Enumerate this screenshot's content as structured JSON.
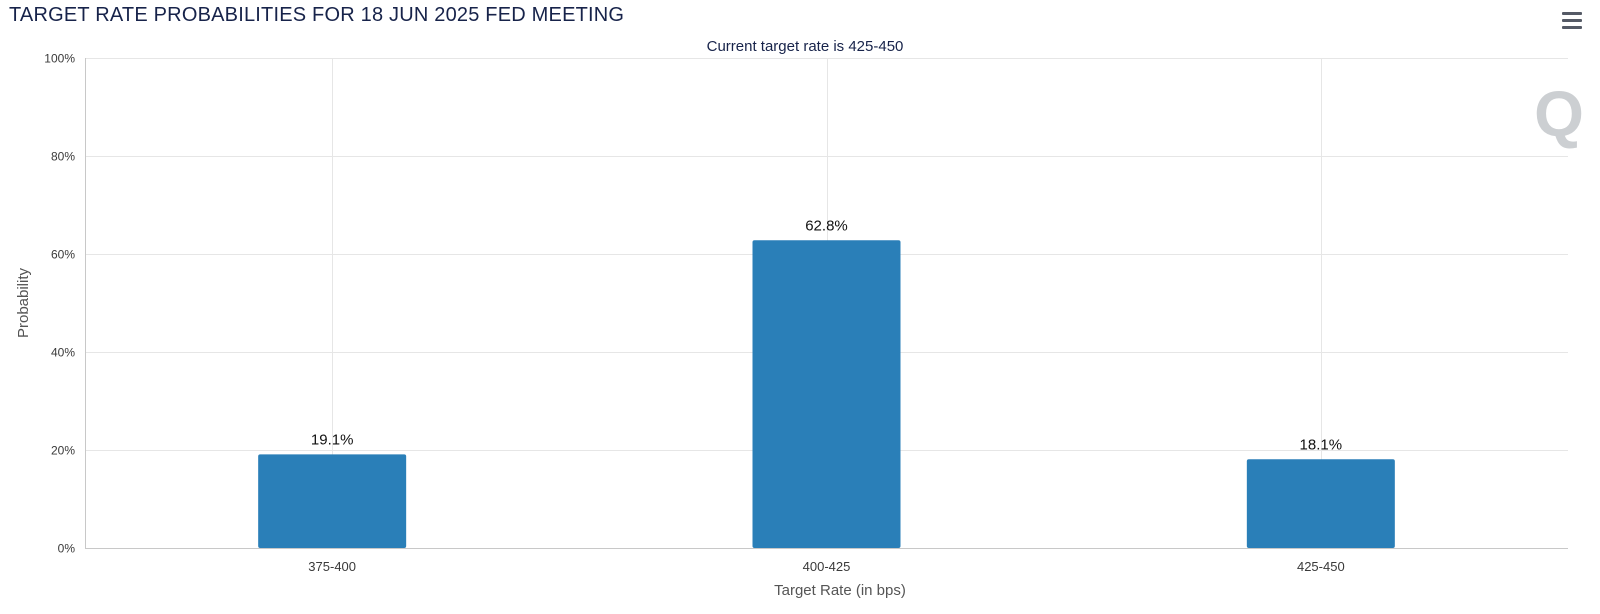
{
  "header": {
    "title": "TARGET RATE PROBABILITIES FOR 18 JUN 2025 FED MEETING"
  },
  "menu": {
    "icon": "hamburger-menu-icon"
  },
  "watermark": {
    "icon": "logo-q-icon",
    "text": "Q"
  },
  "chart_data": {
    "type": "bar",
    "title": "TARGET RATE PROBABILITIES FOR 18 JUN 2025 FED MEETING",
    "subtitle": "Current target rate is 425-450",
    "categories": [
      "375-400",
      "400-425",
      "425-450"
    ],
    "series": [
      {
        "values": [
          19.1,
          62.8,
          18.1
        ],
        "data_labels": [
          "19.1%",
          "62.8%",
          "18.1%"
        ],
        "color": "#2a7fb8"
      }
    ],
    "xlabel": "Target Rate (in bps)",
    "ylabel": "Probability",
    "ylim": [
      0,
      100
    ],
    "yticks": [
      0,
      20,
      40,
      60,
      80,
      100
    ],
    "ytick_labels": [
      "0%",
      "20%",
      "40%",
      "60%",
      "80%",
      "100%"
    ],
    "grid": true,
    "legend": "none"
  },
  "colors": {
    "bar": "#2a7fb8",
    "title": "#17234a",
    "grid": "#e6e6e6",
    "axis": "#cccccc"
  }
}
